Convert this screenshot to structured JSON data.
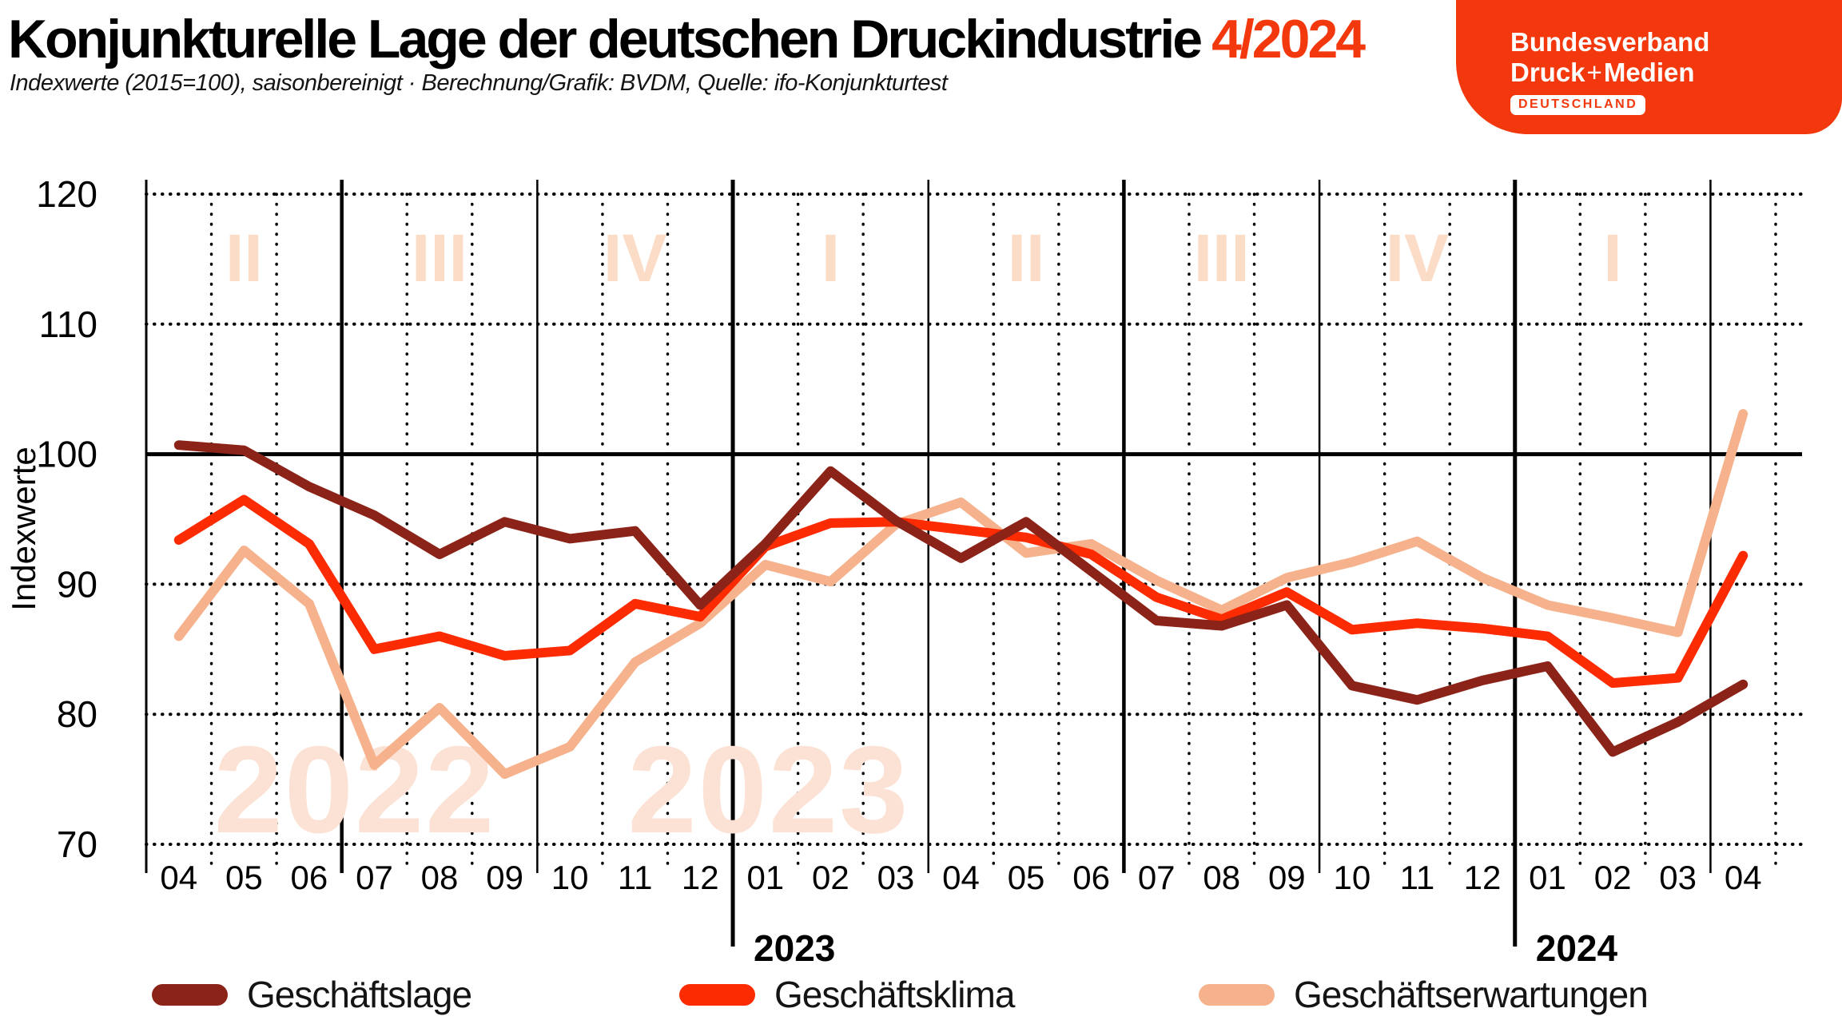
{
  "header": {
    "title": "Konjunkturelle Lage der deutschen Druckindustrie",
    "title_accent": "4/2024",
    "accent_color": "#F2380C",
    "subtitle": "Indexwerte (2015=100), saisonbereinigt · Berechnung/Grafik: BVDM, Quelle: ifo-Konjunkturtest"
  },
  "logo": {
    "line1": "Bundesverband",
    "line2_pre": "Druck",
    "line2_plus": "+",
    "line2_post": "Medien",
    "badge": "DEUTSCHLAND",
    "bg_color": "#F2380C"
  },
  "chart_data": {
    "type": "line",
    "ylabel": "Indexwerte",
    "ylim": [
      70,
      120
    ],
    "yticks": [
      120,
      110,
      100,
      90,
      80,
      70
    ],
    "reference_line": 100,
    "grid": "dotted horizontal + dotted monthly verticals, solid quarter lines",
    "legend_position": "bottom",
    "x_months": [
      "04",
      "05",
      "06",
      "07",
      "08",
      "09",
      "10",
      "11",
      "12",
      "01",
      "02",
      "03",
      "04",
      "05",
      "06",
      "07",
      "08",
      "09",
      "10",
      "11",
      "12",
      "01",
      "02",
      "03",
      "04"
    ],
    "quarters": [
      "II",
      "III",
      "IV",
      "I",
      "II",
      "III",
      "IV",
      "I"
    ],
    "year_watermarks": [
      {
        "text": "2022",
        "month_frac": 3.2
      },
      {
        "text": "2023",
        "month_frac": 9.55
      }
    ],
    "year_labels": [
      {
        "text": "2023",
        "after_month_index": 8
      },
      {
        "text": "2024",
        "after_month_index": 20
      }
    ],
    "series": [
      {
        "name": "Geschäftslage",
        "color": "#8C2318",
        "values": [
          100.7,
          100.3,
          97.5,
          95.3,
          92.3,
          94.8,
          93.5,
          94.1,
          88.4,
          93.1,
          98.7,
          94.9,
          92.0,
          94.8,
          91.0,
          87.2,
          86.8,
          88.4,
          82.2,
          81.1,
          82.6,
          83.7,
          77.1,
          79.4,
          82.3
        ]
      },
      {
        "name": "Geschäftsklima",
        "color": "#FC2B02",
        "values": [
          93.4,
          96.5,
          93.1,
          85.0,
          86.0,
          84.5,
          84.9,
          88.5,
          87.5,
          92.9,
          94.7,
          94.8,
          94.2,
          93.6,
          92.3,
          89.0,
          87.3,
          89.4,
          86.5,
          87.0,
          86.6,
          86.0,
          82.4,
          82.8,
          92.2
        ]
      },
      {
        "name": "Geschäftserwartungen",
        "color": "#F5B28C",
        "values": [
          86.0,
          92.6,
          88.5,
          76.1,
          80.5,
          75.4,
          77.5,
          84.0,
          87.0,
          91.5,
          90.2,
          94.6,
          96.3,
          92.4,
          93.1,
          90.3,
          88.0,
          90.5,
          91.7,
          93.3,
          90.5,
          88.4,
          87.4,
          86.3,
          103.1
        ]
      }
    ],
    "pale_color": "#FBDCC7",
    "watermark_color": "#FCE2D4",
    "grid_color": "#000000"
  }
}
